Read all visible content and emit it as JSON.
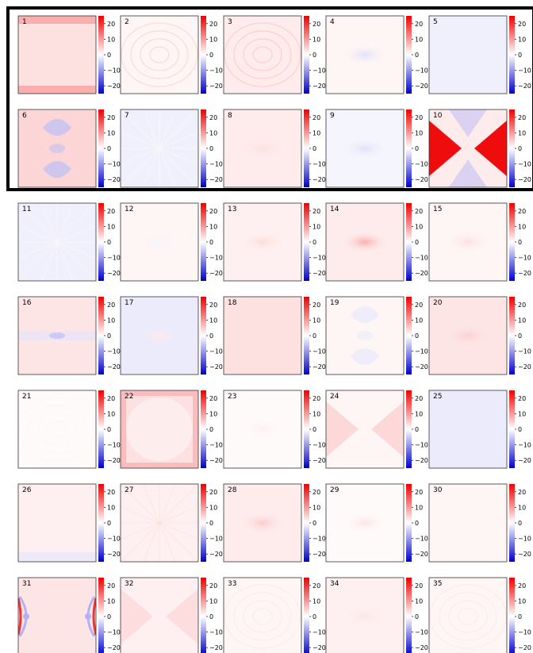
{
  "chart_data": {
    "type": "heatmap",
    "description_of_colormap": "diverging blue-white-red",
    "colormap": {
      "low": "#0000cc",
      "mid": "#ffffff",
      "high": "#ee0000"
    },
    "clim": [
      -25,
      25
    ],
    "colorbar_ticks": [
      20,
      10,
      0,
      -10,
      -20
    ],
    "colorbar_tick_labels": [
      "20",
      "10",
      "0",
      "−10",
      "−20"
    ],
    "grid": {
      "rows": 7,
      "cols": 5
    },
    "highlighted_panels": [
      1,
      2,
      3,
      4,
      5,
      6,
      7,
      8,
      9,
      10
    ],
    "panels": [
      {
        "label": "1",
        "bg": 3,
        "pattern": "edgesTB",
        "amp": 6
      },
      {
        "label": "2",
        "bg": 1,
        "pattern": "rings",
        "amp": 3
      },
      {
        "label": "3",
        "bg": 2,
        "pattern": "rings",
        "amp": 3
      },
      {
        "label": "4",
        "bg": 1,
        "pattern": "centerDot",
        "amp": -4
      },
      {
        "label": "5",
        "bg": -1.5,
        "pattern": "none",
        "amp": 0
      },
      {
        "label": "6",
        "bg": 4,
        "pattern": "hourglass",
        "amp": -10
      },
      {
        "label": "7",
        "bg": -1.5,
        "pattern": "rays",
        "amp": 1
      },
      {
        "label": "8",
        "bg": 2,
        "pattern": "centerDot",
        "amp": 1
      },
      {
        "label": "9",
        "bg": -1,
        "pattern": "centerDot",
        "amp": -2
      },
      {
        "label": "10",
        "bg": 2,
        "pattern": "bowtieLR",
        "amp": 25
      },
      {
        "label": "11",
        "bg": -1.5,
        "pattern": "rays",
        "amp": 1
      },
      {
        "label": "12",
        "bg": 1,
        "pattern": "centerDot",
        "amp": -2
      },
      {
        "label": "13",
        "bg": 1.5,
        "pattern": "centerDot",
        "amp": 2
      },
      {
        "label": "14",
        "bg": 2,
        "pattern": "centerDot",
        "amp": 6
      },
      {
        "label": "15",
        "bg": 1,
        "pattern": "centerDot",
        "amp": 2
      },
      {
        "label": "16",
        "bg": 2.5,
        "pattern": "bandH",
        "amp": -5
      },
      {
        "label": "17",
        "bg": -2,
        "pattern": "centerDot",
        "amp": 4
      },
      {
        "label": "18",
        "bg": 3,
        "pattern": "none",
        "amp": 0
      },
      {
        "label": "19",
        "bg": 1,
        "pattern": "hourglass",
        "amp": -3
      },
      {
        "label": "20",
        "bg": 2.5,
        "pattern": "centerDot",
        "amp": 2
      },
      {
        "label": "21",
        "bg": 0.5,
        "pattern": "rings",
        "amp": -1
      },
      {
        "label": "22",
        "bg": 3,
        "pattern": "edgesAll",
        "amp": 6
      },
      {
        "label": "23",
        "bg": 0.5,
        "pattern": "centerDot",
        "amp": 1
      },
      {
        "label": "24",
        "bg": 1,
        "pattern": "bowtieLR",
        "amp": 3
      },
      {
        "label": "25",
        "bg": -2,
        "pattern": "none",
        "amp": 0
      },
      {
        "label": "26",
        "bg": 1.5,
        "pattern": "edgeB",
        "amp": -4
      },
      {
        "label": "27",
        "bg": 1.5,
        "pattern": "rays",
        "amp": 1
      },
      {
        "label": "28",
        "bg": 2,
        "pattern": "centerDot",
        "amp": 3
      },
      {
        "label": "29",
        "bg": 0.5,
        "pattern": "centerDot",
        "amp": 2
      },
      {
        "label": "30",
        "bg": 1,
        "pattern": "none",
        "amp": 0
      },
      {
        "label": "31",
        "bg": 2.5,
        "pattern": "sideArcs",
        "amp": -10
      },
      {
        "label": "32",
        "bg": 1.5,
        "pattern": "bowtieLR",
        "amp": 2
      },
      {
        "label": "33",
        "bg": 1,
        "pattern": "rings",
        "amp": 1
      },
      {
        "label": "34",
        "bg": 1.5,
        "pattern": "centerDot",
        "amp": 1
      },
      {
        "label": "35",
        "bg": 1,
        "pattern": "rings",
        "amp": 1
      }
    ]
  }
}
